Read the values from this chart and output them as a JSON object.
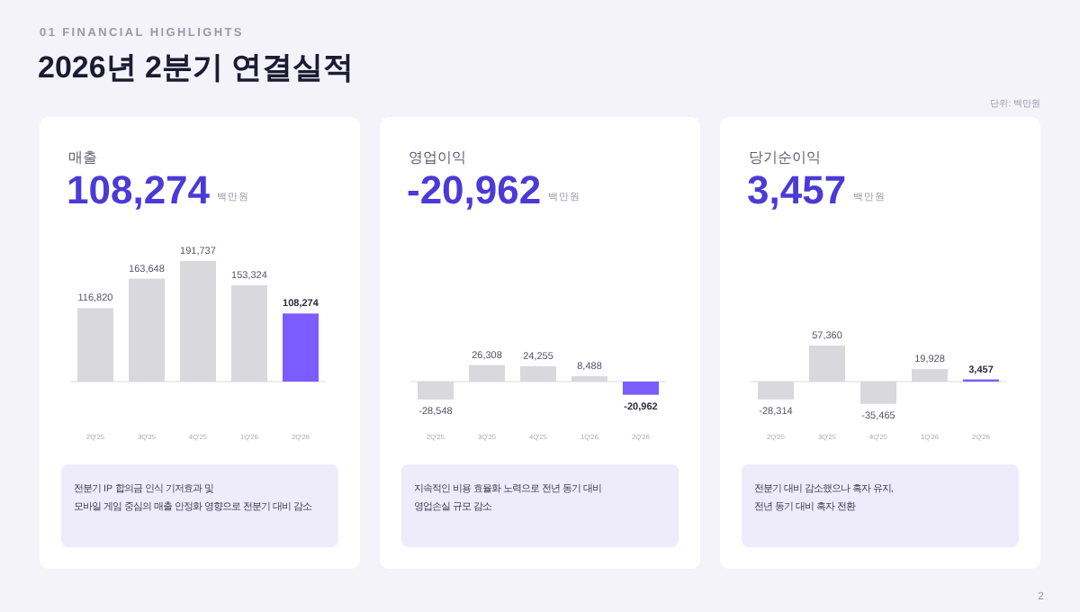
{
  "chart_data": [
    {
      "type": "other",
      "title": "2026년 2분기 연결실적",
      "subtitle": "01  FINANCIAL HIGHLIGHTS",
      "annotations": [
        "단위: 백만원",
        "2"
      ]
    },
    {
      "type": "bar",
      "title": "매출",
      "subtitle": "108,274",
      "annotations": [
        "백만원",
        "전분기 IP 합의금 인식 기저효과 및",
        "모바일 게임 중심의 매출 안정화 영향으로 전분기 대비 감소"
      ],
      "categories": [
        "2Q'25",
        "3Q'25",
        "4Q'25",
        "1Q'26",
        "2Q'26"
      ],
      "values": [
        116820,
        163648,
        191737,
        153324,
        108274
      ],
      "colors": [
        "#d9d8dd",
        "#d9d8dd",
        "#d9d8dd",
        "#d9d8dd",
        "#7b5cff"
      ],
      "value_labels": [
        "116,820",
        "163,648",
        "191,737",
        "153,324",
        "108,274"
      ]
    },
    {
      "type": "bar",
      "title": "영업이익",
      "subtitle": "-20,962",
      "annotations": [
        "백만원",
        "지속적인 비용 효율화 노력으로 전년 동기 대비",
        "영업손실 규모 감소"
      ],
      "categories": [
        "2Q'25",
        "3Q'25",
        "4Q'25",
        "1Q'26",
        "2Q'26"
      ],
      "values": [
        -28548,
        26308,
        24255,
        8488,
        -20962
      ],
      "colors": [
        "#d9d8dd",
        "#d9d8dd",
        "#d9d8dd",
        "#d9d8dd",
        "#7b5cff"
      ],
      "value_labels": [
        "-28,548",
        "26,308",
        "24,255",
        "8,488",
        "-20,962"
      ]
    },
    {
      "type": "bar",
      "title": "당기순이익",
      "subtitle": "3,457",
      "annotations": [
        "백만원",
        "전분기 대비 감소했으나 흑자 유지,",
        "전년 동기 대비 흑자 전환"
      ],
      "categories": [
        "2Q'25",
        "3Q'25",
        "4Q'25",
        "1Q'26",
        "2Q'26"
      ],
      "values": [
        -28314,
        57360,
        -35465,
        19928,
        3457
      ],
      "colors": [
        "#d9d8dd",
        "#d9d8dd",
        "#d9d8dd",
        "#d9d8dd",
        "#7b5cff"
      ],
      "value_labels": [
        "-28,314",
        "57,360",
        "-35,465",
        "19,928",
        "3,457"
      ]
    }
  ]
}
